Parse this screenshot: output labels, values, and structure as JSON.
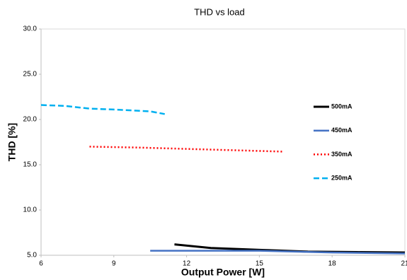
{
  "chart_data": {
    "type": "line",
    "title": "THD  vs load",
    "xlabel": "Output Power [W]",
    "ylabel": "THD [%]",
    "xlim": [
      6,
      21
    ],
    "xticks": [
      6,
      9,
      12,
      15,
      18,
      21
    ],
    "ylim": [
      5,
      30
    ],
    "yticks": [
      {
        "value": 5,
        "label": "5.0"
      },
      {
        "value": 10,
        "label": "10.0"
      },
      {
        "value": 15,
        "label": "15.0"
      },
      {
        "value": 20,
        "label": "20.0"
      },
      {
        "value": 25,
        "label": "25.0"
      },
      {
        "value": 30,
        "label": "30.0"
      }
    ],
    "grid": false,
    "legend": "right",
    "series": [
      {
        "name": "500mA",
        "color": "#000000",
        "style": "solid",
        "x": [
          11.5,
          13,
          15,
          17,
          19,
          21
        ],
        "values": [
          6.2,
          5.8,
          5.6,
          5.4,
          5.35,
          5.3
        ]
      },
      {
        "name": "450mA",
        "color": "#4472c4",
        "style": "solid",
        "x": [
          10.5,
          15,
          18,
          21
        ],
        "values": [
          5.5,
          5.5,
          5.3,
          5.2
        ]
      },
      {
        "name": "350mA",
        "color": "#ff0000",
        "style": "dotted",
        "x": [
          8,
          10,
          12,
          14,
          16
        ],
        "values": [
          17.0,
          16.9,
          16.75,
          16.6,
          16.45
        ]
      },
      {
        "name": "250mA",
        "color": "#00b0f0",
        "style": "dashed",
        "x": [
          6,
          7,
          8,
          9,
          10.5,
          11.1
        ],
        "values": [
          21.6,
          21.5,
          21.2,
          21.1,
          20.9,
          20.6
        ]
      }
    ]
  }
}
